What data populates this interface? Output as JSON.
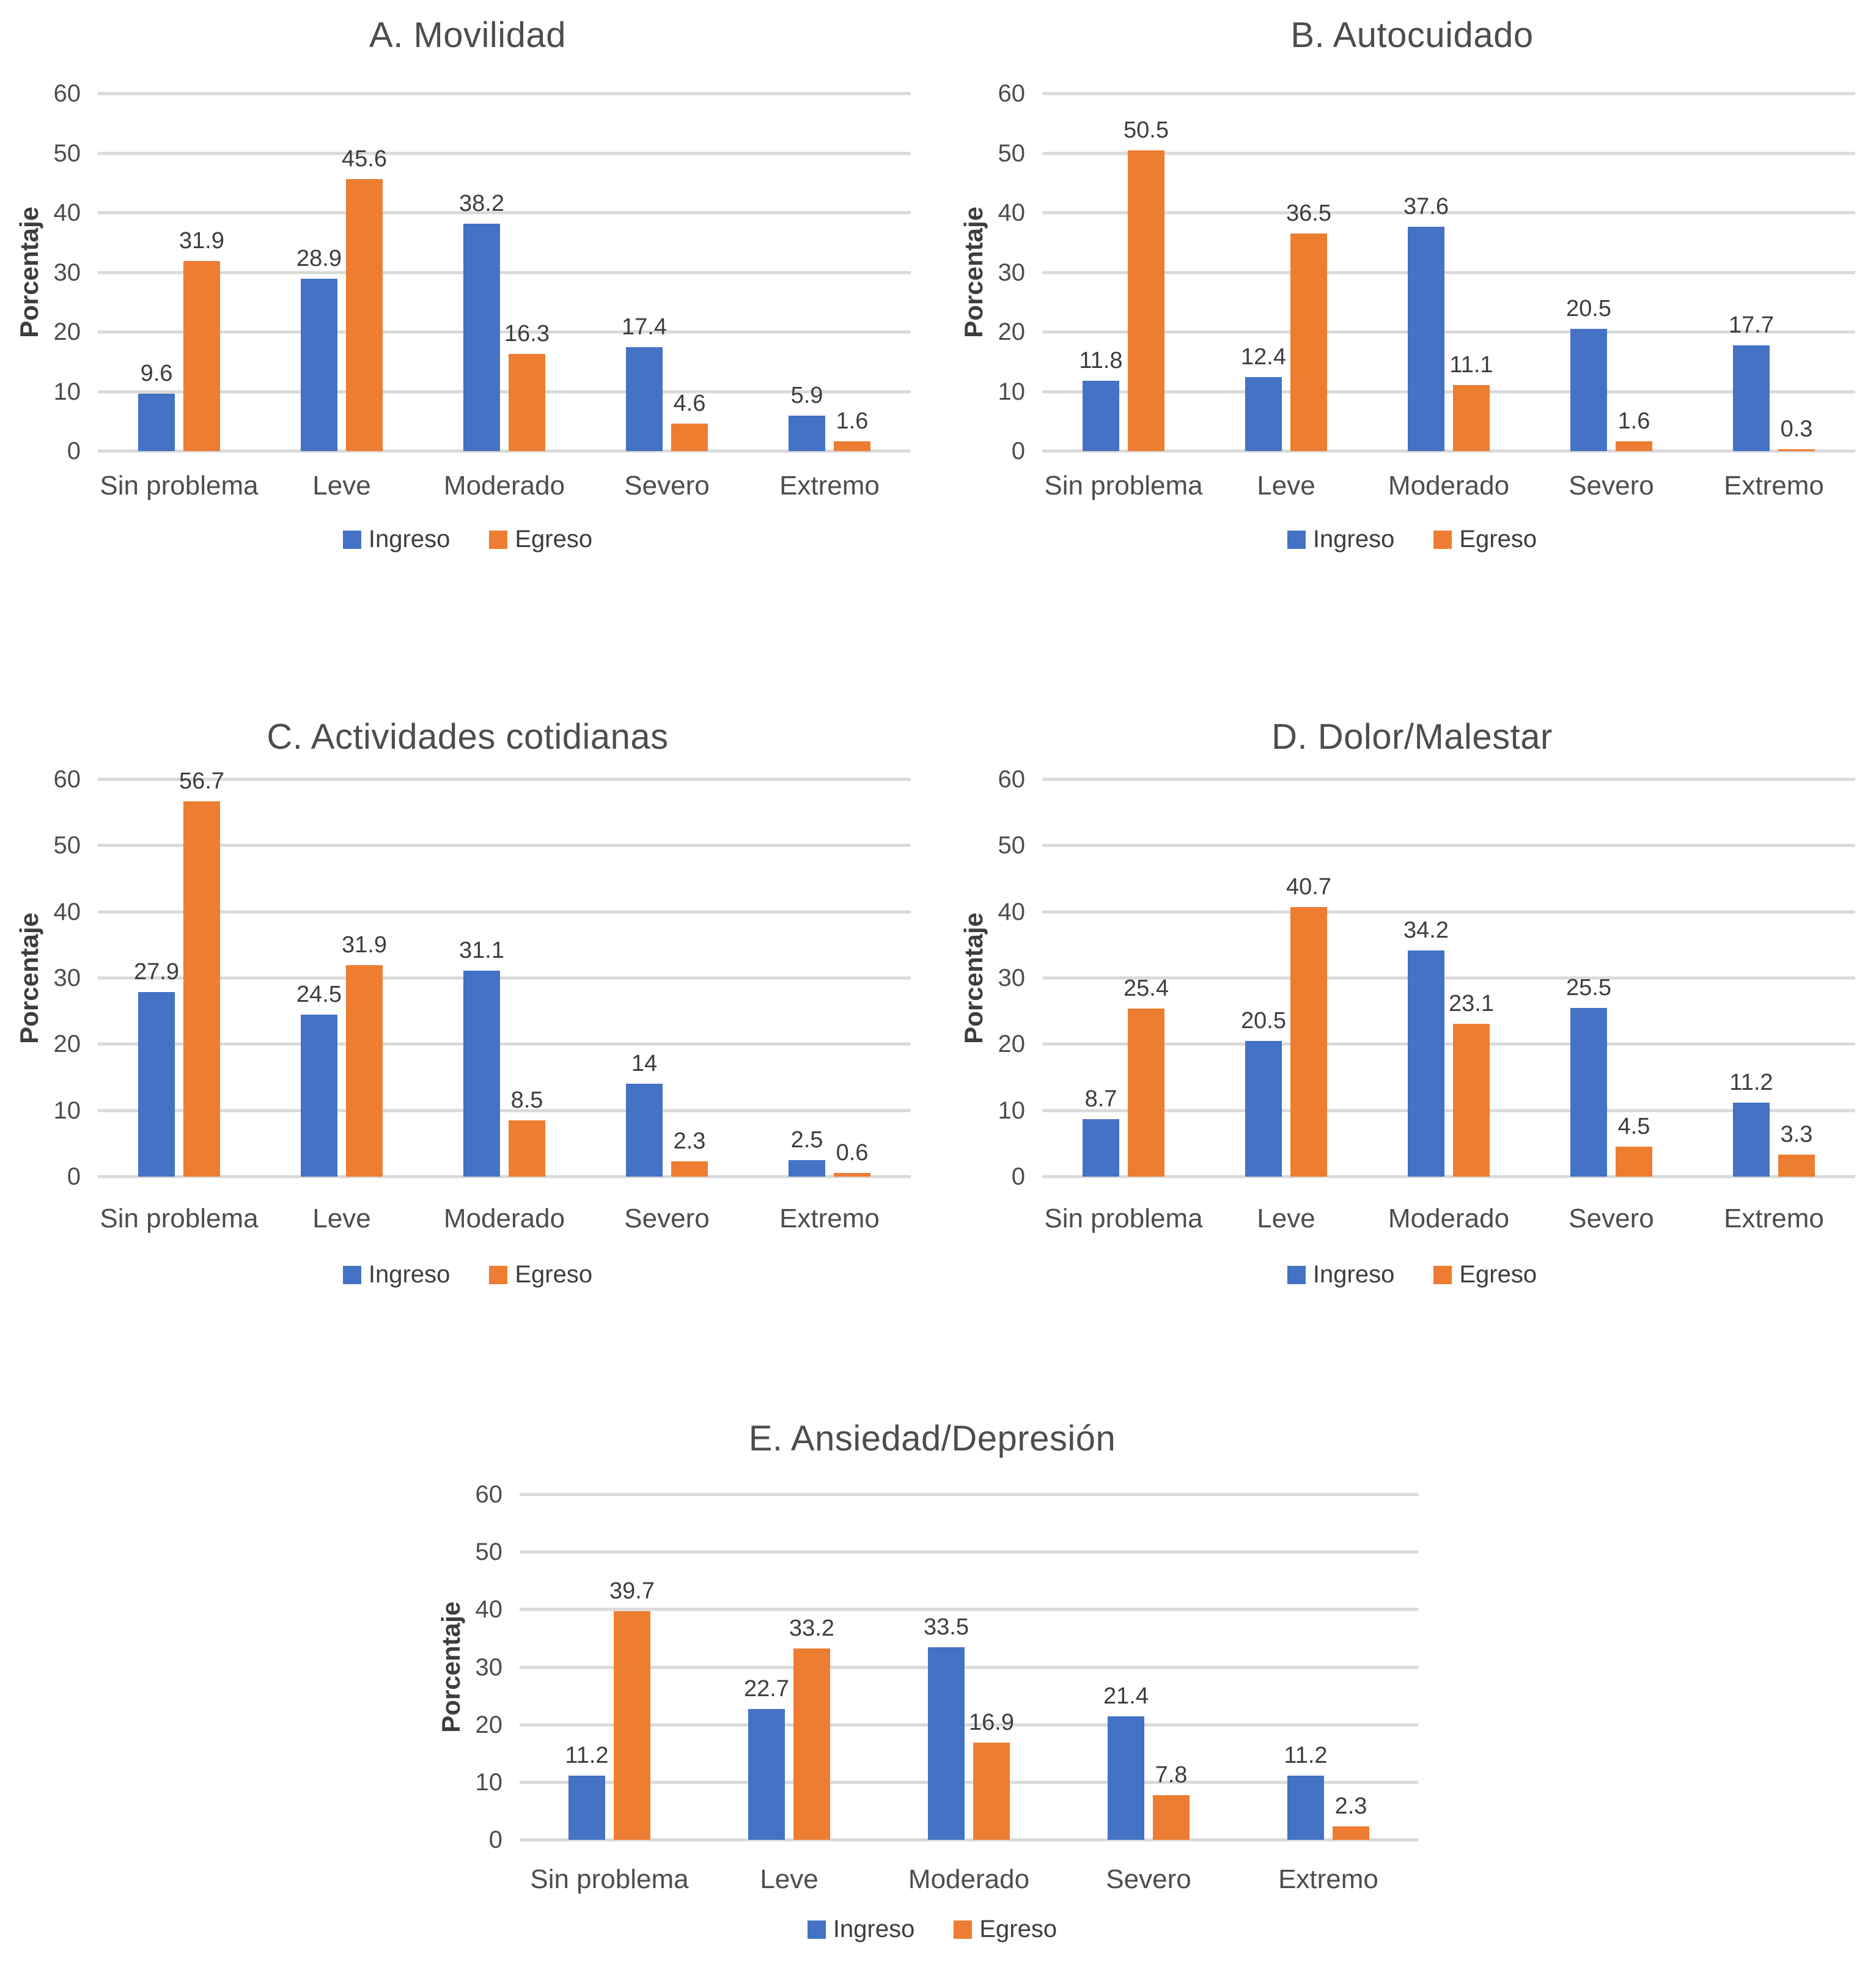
{
  "figure": {
    "background": "#ffffff",
    "grid_color": "#d9d9d9",
    "text_color": "#4d4d4d",
    "series_colors": {
      "Ingreso": "#4472C4",
      "Egreso": "#ED7D31"
    }
  },
  "chart_data": [
    {
      "id": "movilidad",
      "type": "bar",
      "title": "A. Movilidad",
      "ylabel": "Porcentaje",
      "xlabel": "",
      "ylim": [
        0,
        60
      ],
      "yticks": [
        0,
        10,
        20,
        30,
        40,
        50,
        60
      ],
      "grid": true,
      "legend_position": "bottom",
      "categories": [
        "Sin problema",
        "Leve",
        "Moderado",
        "Severo",
        "Extremo"
      ],
      "series": [
        {
          "name": "Ingreso",
          "color": "#4472C4",
          "values": [
            9.6,
            28.9,
            38.2,
            17.4,
            5.9
          ]
        },
        {
          "name": "Egreso",
          "color": "#ED7D31",
          "values": [
            31.9,
            45.6,
            16.3,
            4.6,
            1.6
          ]
        }
      ]
    },
    {
      "id": "autocuidado",
      "type": "bar",
      "title": "B. Autocuidado",
      "ylabel": "Porcentaje",
      "xlabel": "",
      "ylim": [
        0,
        60
      ],
      "yticks": [
        0,
        10,
        20,
        30,
        40,
        50,
        60
      ],
      "grid": true,
      "legend_position": "bottom",
      "categories": [
        "Sin problema",
        "Leve",
        "Moderado",
        "Severo",
        "Extremo"
      ],
      "series": [
        {
          "name": "Ingreso",
          "color": "#4472C4",
          "values": [
            11.8,
            12.4,
            37.6,
            20.5,
            17.7
          ]
        },
        {
          "name": "Egreso",
          "color": "#ED7D31",
          "values": [
            50.5,
            36.5,
            11.1,
            1.6,
            0.3
          ]
        }
      ]
    },
    {
      "id": "actividades-cotidianas",
      "type": "bar",
      "title": "C. Actividades cotidianas",
      "ylabel": "Porcentaje",
      "xlabel": "",
      "ylim": [
        0,
        60
      ],
      "yticks": [
        0,
        10,
        20,
        30,
        40,
        50,
        60
      ],
      "grid": true,
      "legend_position": "bottom",
      "categories": [
        "Sin problema",
        "Leve",
        "Moderado",
        "Severo",
        "Extremo"
      ],
      "series": [
        {
          "name": "Ingreso",
          "color": "#4472C4",
          "values": [
            27.9,
            24.5,
            31.1,
            14,
            2.5
          ]
        },
        {
          "name": "Egreso",
          "color": "#ED7D31",
          "values": [
            56.7,
            31.9,
            8.5,
            2.3,
            0.6
          ]
        }
      ]
    },
    {
      "id": "dolor-malestar",
      "type": "bar",
      "title": "D. Dolor/Malestar",
      "ylabel": "Porcentaje",
      "xlabel": "",
      "ylim": [
        0,
        60
      ],
      "yticks": [
        0,
        10,
        20,
        30,
        40,
        50,
        60
      ],
      "grid": true,
      "legend_position": "bottom",
      "categories": [
        "Sin problema",
        "Leve",
        "Moderado",
        "Severo",
        "Extremo"
      ],
      "series": [
        {
          "name": "Ingreso",
          "color": "#4472C4",
          "values": [
            8.7,
            20.5,
            34.2,
            25.5,
            11.2
          ]
        },
        {
          "name": "Egreso",
          "color": "#ED7D31",
          "values": [
            25.4,
            40.7,
            23.1,
            4.5,
            3.3
          ]
        }
      ]
    },
    {
      "id": "ansiedad-depresion",
      "type": "bar",
      "title": "E. Ansiedad/Depresión",
      "ylabel": "Porcentaje",
      "xlabel": "",
      "ylim": [
        0,
        60
      ],
      "yticks": [
        0,
        10,
        20,
        30,
        40,
        50,
        60
      ],
      "grid": true,
      "legend_position": "bottom",
      "categories": [
        "Sin problema",
        "Leve",
        "Moderado",
        "Severo",
        "Extremo"
      ],
      "series": [
        {
          "name": "Ingreso",
          "color": "#4472C4",
          "values": [
            11.2,
            22.7,
            33.5,
            21.4,
            11.2
          ]
        },
        {
          "name": "Egreso",
          "color": "#ED7D31",
          "values": [
            39.7,
            33.2,
            16.9,
            7.8,
            2.3
          ]
        }
      ]
    }
  ]
}
